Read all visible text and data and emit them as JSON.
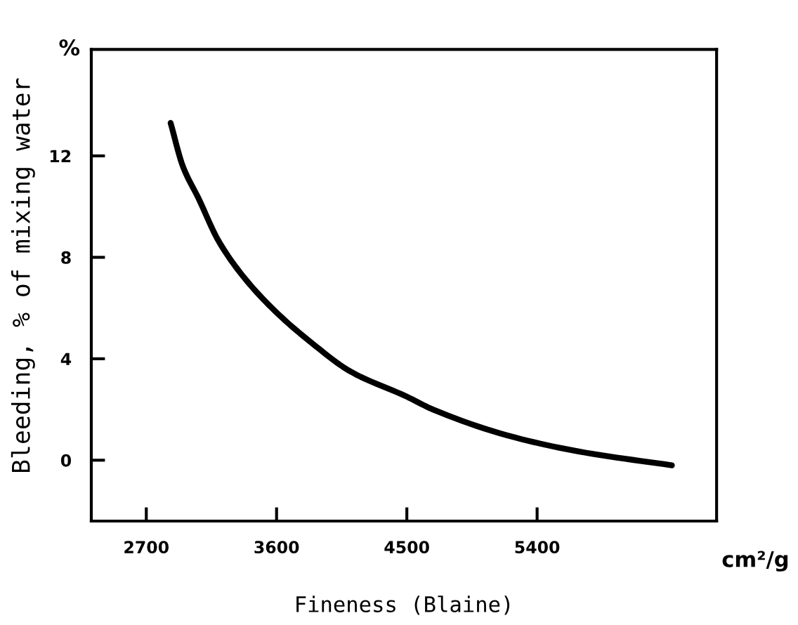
{
  "chart_data": {
    "type": "line",
    "xlabel": "Fineness (Blaine)",
    "ylabel": "Bleeding, % of mixing water",
    "annotations": [
      "%",
      "cm²/g"
    ],
    "x": [
      2868,
      2952,
      3063,
      3194,
      3362,
      3586,
      3848,
      4110,
      4502,
      4680,
      5245,
      5731,
      6331
    ],
    "series": [
      {
        "color": "#000000",
        "values": [
          13.3,
          11.6,
          10.3,
          8.7,
          7.3,
          5.9,
          4.6,
          3.5,
          2.5,
          2.0,
          0.9,
          0.3,
          -0.2
        ]
      }
    ],
    "xlim": [
      2320,
      6640
    ],
    "xticks": [
      2700,
      3600,
      4500,
      5400
    ],
    "ylim": [
      -2.4,
      16.2
    ],
    "yticks": [
      0,
      4,
      8,
      12
    ],
    "grid": false,
    "marker": "none",
    "line_style": "solid"
  }
}
